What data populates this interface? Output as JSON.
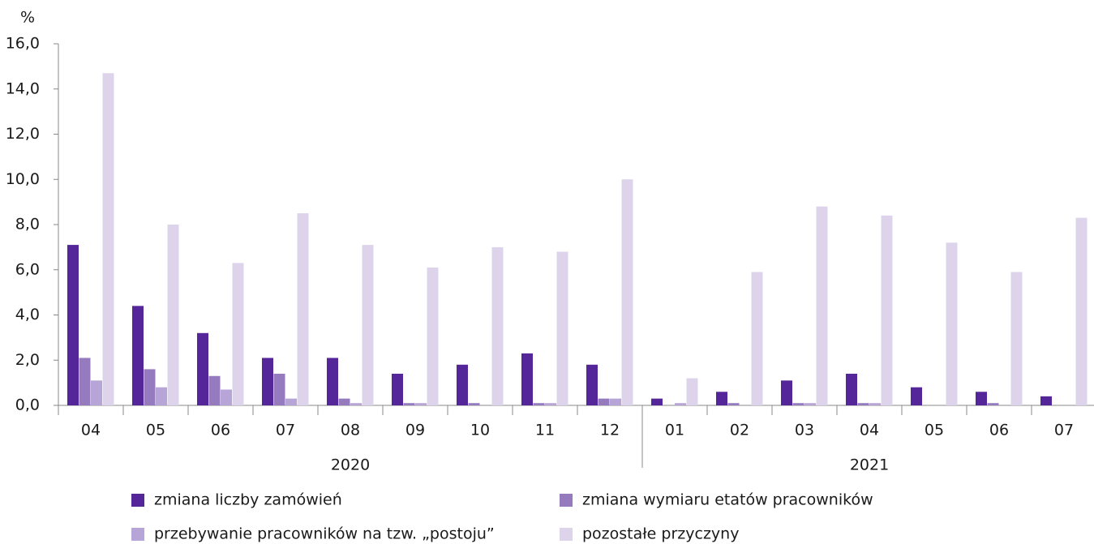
{
  "chart_data": {
    "type": "bar",
    "y_unit": "%",
    "groups": [
      {
        "label": "2020",
        "categories": [
          "04",
          "05",
          "06",
          "07",
          "08",
          "09",
          "10",
          "11",
          "12"
        ]
      },
      {
        "label": "2021",
        "categories": [
          "01",
          "02",
          "03",
          "04",
          "05",
          "06",
          "07"
        ]
      }
    ],
    "series": [
      {
        "name": "zmiana liczby zamówień",
        "color": "#55269a",
        "values": [
          7.1,
          4.4,
          3.2,
          2.1,
          2.1,
          1.4,
          1.8,
          2.3,
          1.8,
          0.3,
          0.6,
          1.1,
          1.4,
          0.8,
          0.6,
          0.4
        ]
      },
      {
        "name": "zmiana wymiaru etatów pracowników",
        "color": "#957bbd",
        "values": [
          2.1,
          1.6,
          1.3,
          1.4,
          0.3,
          0.1,
          0.1,
          0.1,
          0.3,
          0.0,
          0.1,
          0.1,
          0.1,
          0.0,
          0.1,
          0.0
        ]
      },
      {
        "name": "przebywanie pracowników na tzw. „postoju”",
        "color": "#b7a5d8",
        "values": [
          1.1,
          0.8,
          0.7,
          0.3,
          0.1,
          0.1,
          0.0,
          0.1,
          0.3,
          0.1,
          0.0,
          0.1,
          0.1,
          0.0,
          0.0,
          0.0
        ]
      },
      {
        "name": "pozostałe przyczyny",
        "color": "#ddd4ec",
        "values": [
          14.7,
          8.0,
          6.3,
          8.5,
          7.1,
          6.1,
          7.0,
          6.8,
          10.0,
          1.2,
          5.9,
          8.8,
          8.4,
          7.2,
          5.9,
          8.3
        ]
      }
    ],
    "ylim": [
      0,
      16
    ],
    "yticks": [
      {
        "value": 0,
        "label": "0,0"
      },
      {
        "value": 2,
        "label": "2,0"
      },
      {
        "value": 4,
        "label": "4,0"
      },
      {
        "value": 6,
        "label": "6,0"
      },
      {
        "value": 8,
        "label": "8,0"
      },
      {
        "value": 10,
        "label": "10,0"
      },
      {
        "value": 12,
        "label": "12,0"
      },
      {
        "value": 14,
        "label": "14,0"
      },
      {
        "value": 16,
        "label": "16,0"
      }
    ],
    "grid": false
  }
}
